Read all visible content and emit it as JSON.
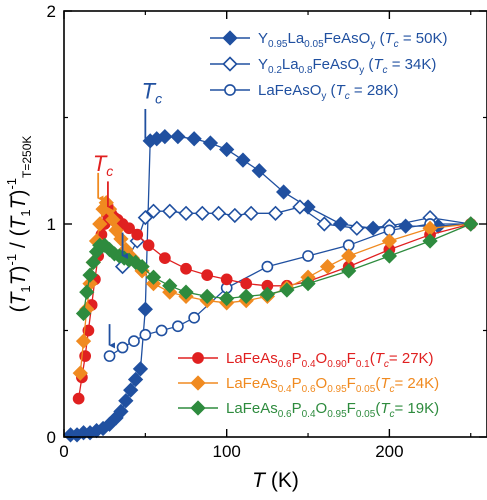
{
  "chart_data": {
    "type": "scatter",
    "xlabel": {
      "italic": "T",
      "rest": " (K)"
    },
    "ylabel": "(T1T)-1 / (T1T)-1T=250K",
    "xlim": [
      0,
      260
    ],
    "ylim": [
      0,
      2
    ],
    "x_ticks": [
      0,
      100,
      200
    ],
    "y_ticks": [
      0,
      1,
      2
    ],
    "grid": false,
    "legend_position": "top-right and bottom-right",
    "series": [
      {
        "name": "Y0.95La0.05FeAsOy (Tc = 50K)",
        "label_parts": [
          [
            "Y",
            ""
          ],
          [
            "0.95",
            "sub"
          ],
          [
            "La",
            ""
          ],
          [
            "0.05",
            "sub"
          ],
          [
            "FeAsO",
            ""
          ],
          [
            "y",
            "sub"
          ],
          [
            " (",
            ""
          ],
          [
            "T",
            "it"
          ],
          [
            "c",
            "sub-it"
          ],
          [
            " = 50K)",
            ""
          ]
        ],
        "color": "#2050a0",
        "marker": "diamond",
        "filled": true,
        "legend_group": "top",
        "x": [
          4,
          8,
          12,
          16,
          20,
          24,
          28,
          32,
          35,
          38,
          41,
          44,
          47,
          50,
          53,
          57,
          62,
          70,
          80,
          90,
          100,
          110,
          120,
          135,
          150,
          170,
          190,
          210,
          230,
          250
        ],
        "y": [
          0.01,
          0.01,
          0.02,
          0.02,
          0.03,
          0.04,
          0.06,
          0.09,
          0.12,
          0.17,
          0.22,
          0.27,
          0.32,
          0.6,
          1.39,
          1.4,
          1.41,
          1.41,
          1.4,
          1.38,
          1.35,
          1.3,
          1.25,
          1.15,
          1.08,
          1.0,
          0.98,
          0.99,
          0.99,
          1.0
        ]
      },
      {
        "name": "Y0.2La0.8FeAsOy (Tc = 34K)",
        "label_parts": [
          [
            "Y",
            ""
          ],
          [
            "0.2",
            "sub"
          ],
          [
            "La",
            ""
          ],
          [
            "0.8",
            "sub"
          ],
          [
            "FeAsO",
            ""
          ],
          [
            "y",
            "sub"
          ],
          [
            " (",
            ""
          ],
          [
            "T",
            "it"
          ],
          [
            "c",
            "sub-it"
          ],
          [
            " = 34K)",
            ""
          ]
        ],
        "color": "#2050a0",
        "marker": "diamond",
        "filled": false,
        "legend_group": "top",
        "x": [
          36,
          40,
          45,
          50,
          55,
          65,
          75,
          85,
          95,
          105,
          115,
          130,
          145,
          160,
          180,
          200,
          225,
          250
        ],
        "y": [
          0.8,
          0.85,
          0.92,
          1.03,
          1.06,
          1.06,
          1.05,
          1.05,
          1.05,
          1.04,
          1.05,
          1.05,
          1.08,
          1.0,
          0.98,
          0.99,
          1.03,
          1.0
        ]
      },
      {
        "name": "LaFeAsOy (Tc = 28K)",
        "label_parts": [
          [
            "LaFeAsO",
            ""
          ],
          [
            "y",
            "sub"
          ],
          [
            " (",
            ""
          ],
          [
            "T",
            "it"
          ],
          [
            "c",
            "sub-it"
          ],
          [
            " = 28K)",
            ""
          ]
        ],
        "color": "#2050a0",
        "marker": "circle",
        "filled": false,
        "legend_group": "top",
        "x": [
          28,
          36,
          43,
          50,
          60,
          70,
          80,
          100,
          125,
          150,
          175,
          200,
          225,
          250
        ],
        "y": [
          0.38,
          0.42,
          0.45,
          0.48,
          0.5,
          0.52,
          0.56,
          0.7,
          0.8,
          0.85,
          0.9,
          0.97,
          1.0,
          1.0
        ]
      },
      {
        "name": "LaFeAs0.6P0.4O0.90F0.1 (Tc = 27K)",
        "label_parts": [
          [
            "LaFeAs",
            ""
          ],
          [
            "0.6",
            "sub"
          ],
          [
            "P",
            ""
          ],
          [
            "0.4",
            "sub"
          ],
          [
            "O",
            ""
          ],
          [
            "0.90",
            "sub"
          ],
          [
            "F",
            ""
          ],
          [
            "0.1",
            "sub"
          ],
          [
            "(",
            ""
          ],
          [
            "T",
            "it"
          ],
          [
            "c",
            "sub-it"
          ],
          [
            "= 27K)",
            ""
          ]
        ],
        "color": "#e02020",
        "marker": "circle",
        "filled": true,
        "legend_group": "bottom",
        "x": [
          9,
          11,
          13,
          15,
          17,
          19,
          21,
          23,
          25,
          27,
          29,
          31,
          33,
          36,
          40,
          45,
          52,
          62,
          75,
          88,
          100,
          112,
          125,
          137,
          150,
          175,
          200,
          225,
          250
        ],
        "y": [
          0.18,
          0.28,
          0.38,
          0.5,
          0.62,
          0.74,
          0.85,
          0.95,
          1.0,
          1.04,
          1.05,
          1.03,
          1.02,
          1.0,
          0.98,
          0.95,
          0.9,
          0.84,
          0.79,
          0.76,
          0.74,
          0.72,
          0.71,
          0.71,
          0.73,
          0.8,
          0.88,
          0.95,
          1.0
        ]
      },
      {
        "name": "LaFeAs0.4P0.6O0.95F0.05 (Tc = 24K)",
        "label_parts": [
          [
            "LaFeAs",
            ""
          ],
          [
            "0.4",
            "sub"
          ],
          [
            "P",
            ""
          ],
          [
            "0.6",
            "sub"
          ],
          [
            "O",
            ""
          ],
          [
            "0.95",
            "sub"
          ],
          [
            "F",
            ""
          ],
          [
            "0.05",
            "sub"
          ],
          [
            "(",
            ""
          ],
          [
            "T",
            "it"
          ],
          [
            "c",
            "sub-it"
          ],
          [
            "= 24K)",
            ""
          ]
        ],
        "color": "#f08a20",
        "marker": "diamond",
        "filled": true,
        "legend_group": "bottom",
        "x": [
          10,
          12,
          14,
          16,
          18,
          20,
          22,
          24,
          26,
          28,
          30,
          32,
          35,
          38,
          42,
          48,
          55,
          65,
          75,
          88,
          100,
          112,
          125,
          137,
          150,
          162,
          175,
          200,
          225,
          250
        ],
        "y": [
          0.3,
          0.45,
          0.6,
          0.72,
          0.82,
          0.92,
          1.0,
          1.07,
          1.1,
          1.07,
          1.02,
          0.97,
          0.93,
          0.88,
          0.84,
          0.78,
          0.72,
          0.68,
          0.66,
          0.64,
          0.63,
          0.64,
          0.66,
          0.7,
          0.75,
          0.8,
          0.85,
          0.92,
          0.98,
          1.0
        ]
      },
      {
        "name": "LaFeAs0.6P0.4O0.95F0.05 (Tc = 19K)",
        "label_parts": [
          [
            "LaFeAs",
            ""
          ],
          [
            "0.6",
            "sub"
          ],
          [
            "P",
            ""
          ],
          [
            "0.4",
            "sub"
          ],
          [
            "O",
            ""
          ],
          [
            "0.95",
            "sub"
          ],
          [
            "F",
            ""
          ],
          [
            "0.05",
            "sub"
          ],
          [
            "(",
            ""
          ],
          [
            "T",
            "it"
          ],
          [
            "c",
            "sub-it"
          ],
          [
            "= 19K)",
            ""
          ]
        ],
        "color": "#2e8b3e",
        "marker": "diamond",
        "filled": true,
        "legend_group": "bottom",
        "x": [
          12,
          14,
          16,
          18,
          20,
          22,
          25,
          28,
          31,
          34,
          37,
          40,
          44,
          48,
          55,
          65,
          75,
          88,
          100,
          112,
          125,
          137,
          150,
          175,
          200,
          225,
          250
        ],
        "y": [
          0.58,
          0.68,
          0.76,
          0.82,
          0.87,
          0.9,
          0.9,
          0.88,
          0.86,
          0.85,
          0.84,
          0.83,
          0.82,
          0.8,
          0.75,
          0.71,
          0.68,
          0.66,
          0.65,
          0.66,
          0.67,
          0.69,
          0.72,
          0.78,
          0.85,
          0.92,
          1.0
        ]
      }
    ],
    "annotations": [
      {
        "id": "tc-blue-label",
        "text": "Tc",
        "color": "#2050a0",
        "x": 54,
        "y": 1.59
      },
      {
        "id": "tc-red-label",
        "text": "Tc",
        "color": "#e02020",
        "x": 24,
        "y": 1.25
      }
    ],
    "arrows": [
      {
        "id": "arrow-blue-tc",
        "color": "#2050a0",
        "x": 50,
        "y_from": 1.54,
        "y_to": 1.4
      },
      {
        "id": "arrow-blue-mid",
        "color": "#2050a0",
        "x": 36,
        "y_from": 0.96,
        "y_to": 0.85
      },
      {
        "id": "arrow-blue-low",
        "color": "#2050a0",
        "x": 28,
        "y_from": 0.53,
        "y_to": 0.43
      },
      {
        "id": "arrow-orange",
        "color": "#f08a20",
        "x": 21,
        "y_from": 1.24,
        "y_to": 1.12
      },
      {
        "id": "arrow-red",
        "color": "#e02020",
        "x": 27,
        "y_from": 1.2,
        "y_to": 1.08
      }
    ]
  }
}
